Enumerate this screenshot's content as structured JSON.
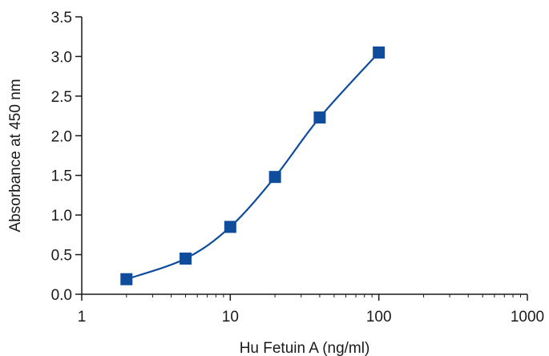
{
  "chart_data": {
    "type": "scatter",
    "title": "",
    "xlabel": "Hu Fetuin A (ng/ml)",
    "ylabel": "Absorbance at 450 nm",
    "x_scale": "log",
    "xlim": [
      1,
      1000
    ],
    "ylim": [
      0,
      3.5
    ],
    "x_ticks": [
      1,
      10,
      100,
      1000
    ],
    "x_tick_labels": [
      "1",
      "10",
      "100",
      "1000"
    ],
    "y_ticks": [
      0,
      0.5,
      1.0,
      1.5,
      2.0,
      2.5,
      3.0,
      3.5
    ],
    "y_tick_labels": [
      "0.0",
      "0.5",
      "1.0",
      "1.5",
      "2.0",
      "2.5",
      "3.0",
      "3.5"
    ],
    "grid": false,
    "legend": "none",
    "series": [
      {
        "x": [
          2,
          5,
          10,
          20,
          40,
          100
        ],
        "y": [
          0.19,
          0.45,
          0.85,
          1.48,
          2.23,
          3.05
        ],
        "marker": "square",
        "fit_curve": true
      }
    ],
    "colors": {
      "series": "#0f4c9c",
      "axis": "#1a1a1a"
    }
  }
}
